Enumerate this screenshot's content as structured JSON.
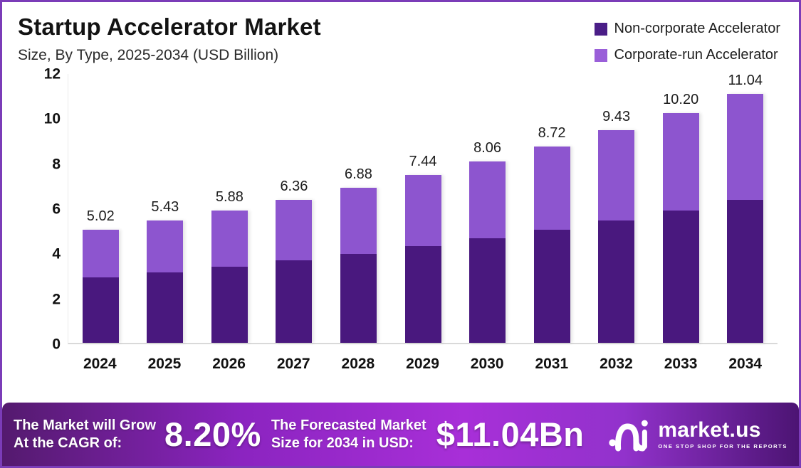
{
  "header": {
    "title": "Startup Accelerator Market",
    "subtitle": "Size, By Type, 2025-2034 (USD Billion)"
  },
  "legend": [
    {
      "label": "Non-corporate Accelerator",
      "color": "#4a1e87"
    },
    {
      "label": "Corporate-run Accelerator",
      "color": "#9a5fd9"
    }
  ],
  "chart_data": {
    "type": "bar",
    "stacked": true,
    "title": "Startup Accelerator Market Size, By Type, 2025-2034 (USD Billion)",
    "categories": [
      "2024",
      "2025",
      "2026",
      "2027",
      "2028",
      "2029",
      "2030",
      "2031",
      "2032",
      "2033",
      "2034"
    ],
    "series": [
      {
        "name": "Non-corporate Accelerator",
        "color": "#49187e",
        "values": [
          2.89,
          3.12,
          3.38,
          3.66,
          3.96,
          4.28,
          4.63,
          5.01,
          5.42,
          5.87,
          6.35
        ]
      },
      {
        "name": "Corporate-run Accelerator",
        "color": "#8d55cf",
        "values": [
          2.13,
          2.31,
          2.5,
          2.7,
          2.92,
          3.16,
          3.43,
          3.71,
          4.01,
          4.33,
          4.69
        ]
      }
    ],
    "totals": [
      5.02,
      5.43,
      5.88,
      6.36,
      6.88,
      7.44,
      8.06,
      8.72,
      9.43,
      10.2,
      11.04
    ],
    "total_labels": [
      "5.02",
      "5.43",
      "5.88",
      "6.36",
      "6.88",
      "7.44",
      "8.06",
      "8.72",
      "9.43",
      "10.20",
      "11.04"
    ],
    "xlabel": "",
    "ylabel": "USD Billion",
    "ylim": [
      0,
      12
    ],
    "yticks": [
      0,
      2,
      4,
      6,
      8,
      10,
      12
    ],
    "grid": false,
    "legend_position": "top-right"
  },
  "banner": {
    "cagr_line1": "The Market will Grow",
    "cagr_line2": "At the CAGR of:",
    "cagr_value": "8.20%",
    "forecast_line1": "The Forecasted Market",
    "forecast_line2": "Size for 2034 in USD:",
    "forecast_value": "$11.04Bn",
    "logo_name": "market.us",
    "logo_tagline": "ONE STOP SHOP FOR THE REPORTS"
  }
}
